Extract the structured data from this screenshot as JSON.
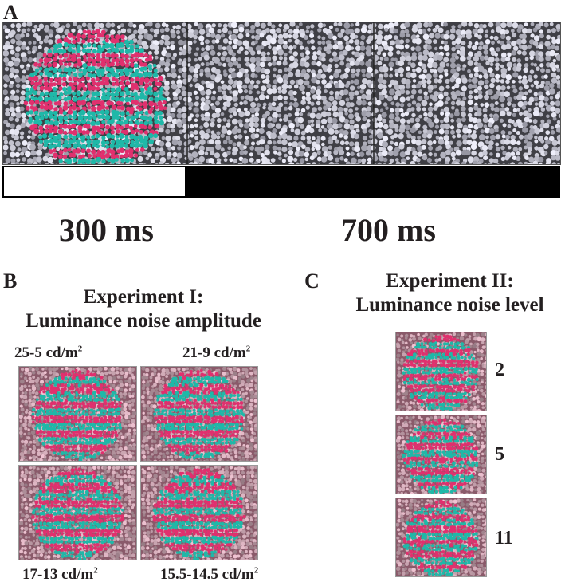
{
  "panel_a": {
    "letter": "A",
    "durations": {
      "first": "300 ms",
      "second": "700 ms"
    }
  },
  "panel_b": {
    "letter": "B",
    "title_line1": "Experiment I:",
    "title_line2": "Luminance noise amplitude",
    "conditions": [
      {
        "label": "25-5 cd/m",
        "sup": "2"
      },
      {
        "label": "21-9 cd/m",
        "sup": "2"
      },
      {
        "label": "17-13 cd/m",
        "sup": "2"
      },
      {
        "label": "15.5-14.5 cd/m",
        "sup": "2"
      }
    ]
  },
  "panel_c": {
    "letter": "C",
    "title_line1": "Experiment II:",
    "title_line2": "Luminance noise level",
    "levels": [
      "2",
      "5",
      "11"
    ]
  },
  "colors": {
    "stripe_red": "#e0306e",
    "stripe_teal": "#1fb8a8",
    "noise_dark": "#3f3f45",
    "noise_pink": "#8a5a6a"
  }
}
